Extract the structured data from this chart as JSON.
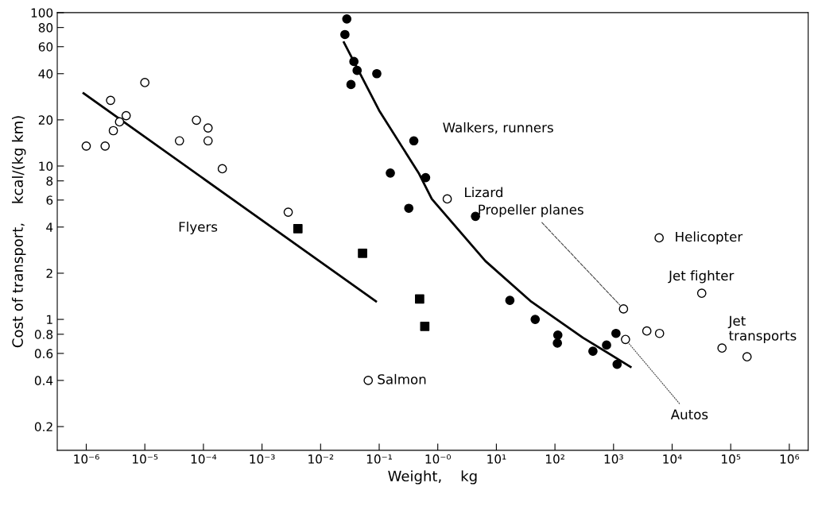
{
  "chart_data": {
    "type": "scatter",
    "xlabel": "Weight,    kg",
    "ylabel": "Cost of transport,    kcal/(kg km)",
    "log": "xy",
    "xlim": [
      3.2e-07,
      2100000.0
    ],
    "ylim": [
      0.14,
      100
    ],
    "xticks": [
      {
        "value": 1e-06,
        "label": "10⁻⁶"
      },
      {
        "value": 1e-05,
        "label": "10⁻⁵"
      },
      {
        "value": 0.0001,
        "label": "10⁻⁴"
      },
      {
        "value": 0.001,
        "label": "10⁻³"
      },
      {
        "value": 0.01,
        "label": "10⁻²"
      },
      {
        "value": 0.1,
        "label": "10⁻¹"
      },
      {
        "value": 1,
        "label": "10⁻⁰"
      },
      {
        "value": 10,
        "label": "10¹"
      },
      {
        "value": 100,
        "label": "10²"
      },
      {
        "value": 1000,
        "label": "10³"
      },
      {
        "value": 10000.0,
        "label": "10⁴"
      },
      {
        "value": 100000.0,
        "label": "10⁵"
      },
      {
        "value": 1000000.0,
        "label": "10⁶"
      }
    ],
    "yticks": [
      0.2,
      0.4,
      0.6,
      0.8,
      1,
      2,
      4,
      6,
      8,
      10,
      20,
      40,
      60,
      80,
      100
    ],
    "grid": false,
    "series": [
      {
        "type": "scatter",
        "marker": "circle",
        "color": "#ffffff",
        "x": [
          1e-06,
          2.1e-06,
          2.6e-06,
          2.9e-06,
          3.7e-06,
          4.8e-06,
          1e-05,
          3.9e-05,
          7.6e-05,
          0.00012,
          0.00012,
          0.00021,
          0.0028
        ],
        "values": [
          13.5,
          13.5,
          26.8,
          17,
          19.4,
          21.3,
          35,
          14.6,
          19.9,
          17.7,
          14.6,
          9.6,
          5.0
        ]
      },
      {
        "type": "scatter",
        "marker": "square",
        "color": "#000000",
        "x": [
          0.0041,
          0.052,
          0.49,
          0.6
        ],
        "values": [
          3.9,
          2.7,
          1.36,
          0.9
        ]
      },
      {
        "type": "line",
        "marker": "none",
        "line_style": "solid",
        "color": "#000000",
        "x": [
          9e-07,
          0.088
        ],
        "values": [
          29.8,
          1.31
        ]
      },
      {
        "type": "scatter",
        "marker": "circle",
        "color": "#000000",
        "x": [
          0.028,
          0.026,
          0.037,
          0.042,
          0.091,
          0.033,
          0.39,
          0.155,
          0.62,
          0.32,
          4.4,
          17,
          46,
          112,
          110,
          445,
          760,
          1100,
          1150
        ],
        "values": [
          91,
          72,
          48,
          42,
          40,
          34,
          14.6,
          9.0,
          8.4,
          5.3,
          4.7,
          1.33,
          1.0,
          0.79,
          0.7,
          0.62,
          0.68,
          0.81,
          0.51
        ]
      },
      {
        "type": "line",
        "marker": "none",
        "line_style": "solid",
        "color": "#000000",
        "x": [
          0.025,
          0.1,
          0.48,
          0.79,
          6.5,
          38,
          300,
          1950
        ],
        "values": [
          64,
          23,
          8.9,
          6.1,
          2.4,
          1.32,
          0.76,
          0.49
        ]
      },
      {
        "type": "scatter",
        "marker": "circle",
        "color": "#ffffff",
        "x": [
          0.065,
          1.45,
          1480,
          1600,
          3700,
          6100,
          6000,
          32000,
          71000,
          190000
        ],
        "values": [
          0.4,
          6.1,
          1.17,
          0.74,
          0.84,
          0.81,
          3.4,
          1.48,
          0.65,
          0.57
        ]
      }
    ],
    "annotations": [
      "Flyers",
      "Walkers, runners",
      {
        "text": "Lizard",
        "x": 1.45,
        "y": 6.1
      },
      {
        "text": "Propeller planes",
        "x": 1480,
        "y": 1.17
      },
      {
        "text": "Helicopter",
        "x": 6000,
        "y": 3.4
      },
      {
        "text": "Jet fighter",
        "x": 32000,
        "y": 1.48
      },
      {
        "text": "Jet\ntransports",
        "x": 71000,
        "y": 0.65
      },
      {
        "text": "Salmon",
        "x": 0.065,
        "y": 0.4
      },
      {
        "text": "Autos",
        "x": 1600,
        "y": 0.74
      }
    ]
  }
}
